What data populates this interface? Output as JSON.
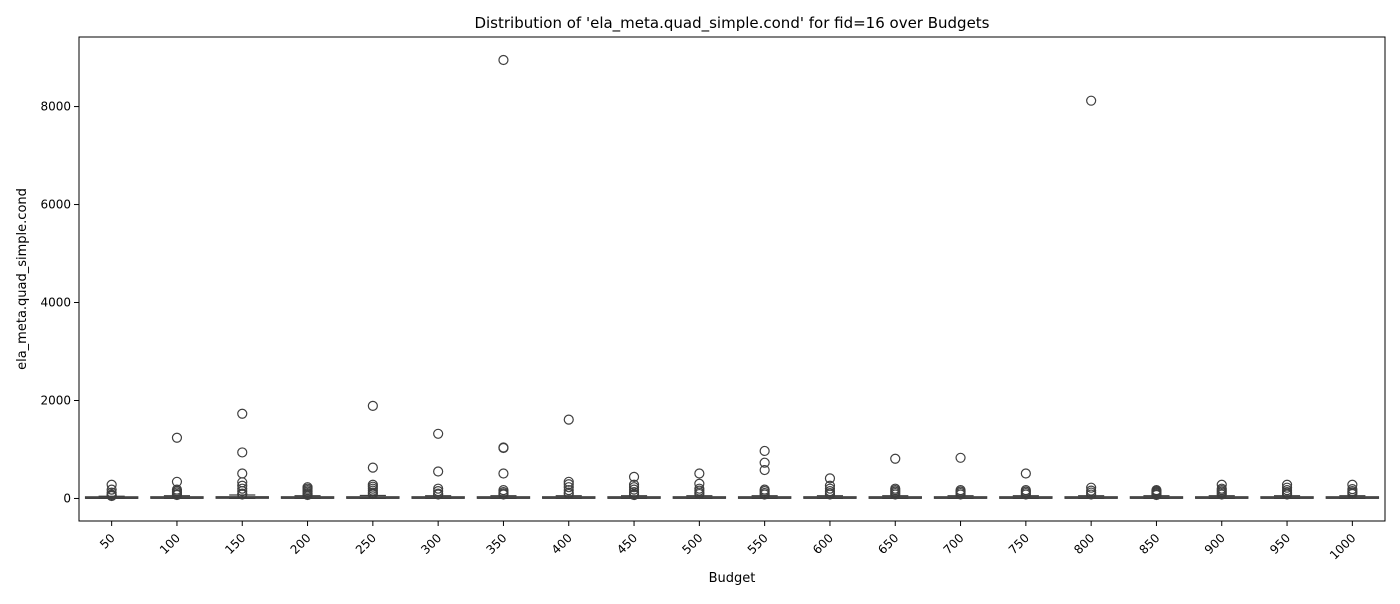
{
  "chart_data": {
    "type": "box",
    "title": "Distribution of 'ela_meta.quad_simple.cond' for fid=16 over Budgets",
    "xlabel": "Budget",
    "ylabel": "ela_meta.quad_simple.cond",
    "ylim": [
      -460,
      9420
    ],
    "yticks": [
      0,
      2000,
      4000,
      6000,
      8000
    ],
    "categories": [
      "50",
      "100",
      "150",
      "200",
      "250",
      "300",
      "350",
      "400",
      "450",
      "500",
      "550",
      "600",
      "650",
      "700",
      "750",
      "800",
      "850",
      "900",
      "950",
      "1000"
    ],
    "boxes": [
      {
        "q1": 3,
        "median": 8,
        "q3": 20,
        "whisker_low": 1,
        "whisker_high": 45,
        "outliers": [
          280,
          180,
          120,
          80,
          60,
          50
        ]
      },
      {
        "q1": 4,
        "median": 10,
        "q3": 25,
        "whisker_low": 1,
        "whisker_high": 55,
        "outliers": [
          1240,
          340,
          180,
          150,
          120,
          90,
          70
        ]
      },
      {
        "q1": 5,
        "median": 12,
        "q3": 30,
        "whisker_low": 1,
        "whisker_high": 70,
        "outliers": [
          1730,
          940,
          510,
          330,
          260,
          200,
          150,
          100,
          80
        ]
      },
      {
        "q1": 4,
        "median": 10,
        "q3": 25,
        "whisker_low": 1,
        "whisker_high": 55,
        "outliers": [
          230,
          200,
          170,
          140,
          110,
          90,
          70
        ]
      },
      {
        "q1": 4,
        "median": 10,
        "q3": 25,
        "whisker_low": 1,
        "whisker_high": 60,
        "outliers": [
          1890,
          630,
          280,
          240,
          200,
          160,
          120,
          90
        ]
      },
      {
        "q1": 4,
        "median": 10,
        "q3": 24,
        "whisker_low": 1,
        "whisker_high": 55,
        "outliers": [
          1320,
          550,
          200,
          150,
          100,
          80
        ]
      },
      {
        "q1": 4,
        "median": 10,
        "q3": 24,
        "whisker_low": 1,
        "whisker_high": 55,
        "outliers": [
          8950,
          1040,
          1030,
          510,
          170,
          130,
          100,
          80
        ]
      },
      {
        "q1": 4,
        "median": 10,
        "q3": 25,
        "whisker_low": 1,
        "whisker_high": 55,
        "outliers": [
          1610,
          340,
          290,
          230,
          170,
          120,
          90
        ]
      },
      {
        "q1": 4,
        "median": 10,
        "q3": 24,
        "whisker_low": 1,
        "whisker_high": 55,
        "outliers": [
          440,
          280,
          230,
          180,
          130,
          90,
          70
        ]
      },
      {
        "q1": 4,
        "median": 10,
        "q3": 24,
        "whisker_low": 1,
        "whisker_high": 55,
        "outliers": [
          510,
          300,
          200,
          160,
          120,
          90
        ]
      },
      {
        "q1": 4,
        "median": 10,
        "q3": 25,
        "whisker_low": 1,
        "whisker_high": 55,
        "outliers": [
          970,
          730,
          580,
          180,
          150,
          110,
          80
        ]
      },
      {
        "q1": 4,
        "median": 10,
        "q3": 24,
        "whisker_low": 1,
        "whisker_high": 55,
        "outliers": [
          410,
          260,
          200,
          150,
          110,
          80
        ]
      },
      {
        "q1": 4,
        "median": 10,
        "q3": 24,
        "whisker_low": 1,
        "whisker_high": 55,
        "outliers": [
          810,
          200,
          170,
          140,
          110,
          80
        ]
      },
      {
        "q1": 4,
        "median": 10,
        "q3": 24,
        "whisker_low": 1,
        "whisker_high": 55,
        "outliers": [
          830,
          170,
          140,
          110,
          80
        ]
      },
      {
        "q1": 4,
        "median": 10,
        "q3": 24,
        "whisker_low": 1,
        "whisker_high": 55,
        "outliers": [
          510,
          170,
          140,
          110,
          80
        ]
      },
      {
        "q1": 4,
        "median": 10,
        "q3": 24,
        "whisker_low": 1,
        "whisker_high": 55,
        "outliers": [
          8120,
          220,
          160,
          120,
          80
        ]
      },
      {
        "q1": 4,
        "median": 10,
        "q3": 24,
        "whisker_low": 1,
        "whisker_high": 55,
        "outliers": [
          170,
          150,
          130,
          110,
          90,
          70
        ]
      },
      {
        "q1": 4,
        "median": 10,
        "q3": 24,
        "whisker_low": 1,
        "whisker_high": 55,
        "outliers": [
          280,
          200,
          170,
          140,
          110,
          80
        ]
      },
      {
        "q1": 4,
        "median": 10,
        "q3": 24,
        "whisker_low": 1,
        "whisker_high": 55,
        "outliers": [
          280,
          220,
          170,
          130,
          100,
          80
        ]
      },
      {
        "q1": 4,
        "median": 10,
        "q3": 24,
        "whisker_low": 1,
        "whisker_high": 55,
        "outliers": [
          280,
          190,
          150,
          120,
          90
        ]
      }
    ],
    "grid": false,
    "legend": "none"
  },
  "colors": {
    "box_fill": "#a9a9a9",
    "line": "#3f3f3f"
  }
}
